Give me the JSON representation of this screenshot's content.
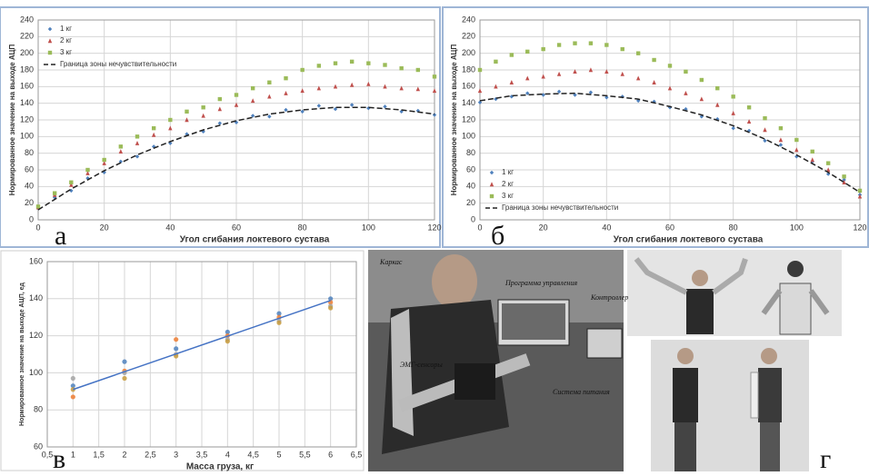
{
  "chart_data": [
    {
      "type": "scatter",
      "xlabel": "Угол сгибания локтевого сустава",
      "ylabel": "Нормированное значение на выходе АЦП",
      "x": [
        0,
        5,
        10,
        15,
        20,
        25,
        30,
        35,
        40,
        45,
        50,
        55,
        60,
        65,
        70,
        75,
        80,
        85,
        90,
        95,
        100,
        105,
        110,
        115,
        120
      ],
      "series": [
        {
          "name": "1 кг",
          "color": "#4f81bd",
          "marker": "diamond",
          "values": [
            14,
            27,
            35,
            50,
            57,
            70,
            76,
            88,
            92,
            103,
            106,
            116,
            117,
            125,
            124,
            132,
            130,
            137,
            133,
            138,
            134,
            136,
            130,
            131,
            126
          ]
        },
        {
          "name": "2 кг",
          "color": "#c0504d",
          "marker": "triangle",
          "values": [
            15,
            30,
            42,
            56,
            68,
            82,
            92,
            102,
            110,
            120,
            125,
            133,
            138,
            143,
            148,
            152,
            155,
            158,
            160,
            162,
            163,
            160,
            158,
            157,
            155
          ]
        },
        {
          "name": "3 кг",
          "color": "#9bbb59",
          "marker": "square",
          "values": [
            16,
            32,
            45,
            60,
            72,
            88,
            100,
            110,
            120,
            130,
            135,
            145,
            150,
            158,
            165,
            170,
            180,
            185,
            188,
            190,
            188,
            186,
            182,
            180,
            172
          ]
        },
        {
          "name": "Граница зоны нечувствительности",
          "color": "#222222",
          "marker": "dashed",
          "x": [
            0,
            10,
            20,
            30,
            40,
            50,
            60,
            70,
            80,
            90,
            100,
            110,
            120
          ],
          "values": [
            12,
            37,
            59,
            78,
            94,
            108,
            119,
            127,
            132,
            135,
            135,
            132,
            127
          ]
        }
      ],
      "xlim": [
        0,
        120
      ],
      "xticks": [
        0,
        20,
        40,
        60,
        80,
        100,
        120
      ],
      "ylim": [
        0,
        240
      ],
      "yticks": [
        0,
        20,
        40,
        60,
        80,
        100,
        120,
        140,
        160,
        180,
        200,
        220,
        240
      ],
      "grid": true,
      "legend": "upper left"
    },
    {
      "type": "scatter",
      "xlabel": "Угол сгибания локтевого сустава",
      "ylabel": "Нормированное значение на выходе АЦП",
      "x": [
        0,
        5,
        10,
        15,
        20,
        25,
        30,
        35,
        40,
        45,
        50,
        55,
        60,
        65,
        70,
        75,
        80,
        85,
        90,
        95,
        100,
        105,
        110,
        115,
        120
      ],
      "series": [
        {
          "name": "1 кг",
          "color": "#4f81bd",
          "marker": "diamond",
          "values": [
            141,
            145,
            148,
            152,
            150,
            154,
            150,
            153,
            147,
            148,
            143,
            142,
            135,
            133,
            124,
            121,
            110,
            107,
            95,
            90,
            76,
            70,
            55,
            48,
            30
          ]
        },
        {
          "name": "2 кг",
          "color": "#c0504d",
          "marker": "triangle",
          "values": [
            155,
            160,
            165,
            170,
            172,
            175,
            178,
            180,
            178,
            175,
            170,
            165,
            158,
            152,
            145,
            138,
            128,
            118,
            108,
            96,
            84,
            72,
            60,
            45,
            28
          ]
        },
        {
          "name": "3 кг",
          "color": "#9bbb59",
          "marker": "square",
          "values": [
            180,
            190,
            198,
            202,
            205,
            210,
            212,
            212,
            210,
            205,
            200,
            192,
            185,
            178,
            168,
            158,
            148,
            135,
            122,
            110,
            96,
            82,
            68,
            52,
            35
          ]
        },
        {
          "name": "Граница зоны нечувствительности",
          "color": "#222222",
          "marker": "dashed",
          "x": [
            0,
            10,
            20,
            30,
            40,
            50,
            60,
            70,
            80,
            90,
            100,
            110,
            120
          ],
          "values": [
            143,
            149,
            151,
            152,
            149,
            145,
            136,
            126,
            113,
            97,
            78,
            57,
            33
          ]
        }
      ],
      "xlim": [
        0,
        120
      ],
      "xticks": [
        0,
        20,
        40,
        60,
        80,
        100,
        120
      ],
      "ylim": [
        0,
        240
      ],
      "yticks": [
        0,
        20,
        40,
        60,
        80,
        100,
        120,
        140,
        160,
        180,
        200,
        220,
        240
      ],
      "grid": true,
      "legend": "lower left"
    },
    {
      "type": "scatter",
      "xlabel": "Масса груза, кг",
      "ylabel": "Нормированное значение на выходе АЦП, ед",
      "series": [
        {
          "color": "#4f81bd",
          "marker": "circle",
          "x": [
            1,
            2,
            3,
            4,
            5,
            6
          ],
          "values": [
            93,
            106,
            113,
            122,
            132,
            140
          ]
        },
        {
          "color": "#ed7d31",
          "marker": "circle",
          "x": [
            1,
            2,
            3,
            4,
            5,
            6
          ],
          "values": [
            87,
            101,
            118,
            120,
            130,
            138
          ]
        },
        {
          "color": "#a5a5a5",
          "marker": "circle",
          "x": [
            1,
            2,
            3,
            4,
            5,
            6
          ],
          "values": [
            97,
            100,
            110,
            118,
            128,
            136
          ]
        },
        {
          "color": "#c89b3c",
          "marker": "circle",
          "x": [
            1,
            2,
            3,
            4,
            5,
            6
          ],
          "values": [
            91,
            97,
            109,
            117,
            127,
            135
          ]
        },
        {
          "color": "#4472c4",
          "marker": "line",
          "x": [
            1,
            6
          ],
          "values": [
            91,
            139
          ]
        }
      ],
      "xlim": [
        0.5,
        6.5
      ],
      "xticks": [
        {
          "value": 0.5,
          "label": "0,5"
        },
        1,
        {
          "value": 1.5,
          "label": "1,5"
        },
        2,
        {
          "value": 2.5,
          "label": "2,5"
        },
        3,
        {
          "value": 3.5,
          "label": "3,5"
        },
        4,
        {
          "value": 4.5,
          "label": "4,5"
        },
        5,
        {
          "value": 5.5,
          "label": "5,5"
        },
        6,
        {
          "value": 6.5,
          "label": "6,5"
        }
      ],
      "ylim": [
        60,
        160
      ],
      "yticks": [
        60,
        80,
        100,
        120,
        140,
        160
      ],
      "grid": true
    }
  ],
  "panel_letters": [
    "а",
    "б",
    "в",
    "г"
  ],
  "photo_labels": [
    "Каркас",
    "Программа управления",
    "Контроллер",
    "ЭМГ-сенсоры",
    "Система питания"
  ]
}
